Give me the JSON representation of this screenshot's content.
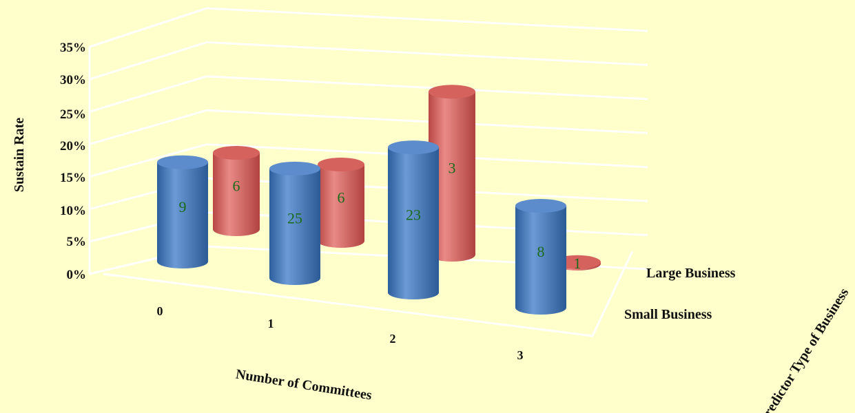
{
  "chart_data": {
    "type": "bar",
    "categories": [
      "0",
      "1",
      "2",
      "3"
    ],
    "series": [
      {
        "name": "Small Business",
        "values": [
          19.5,
          21.5,
          28.5,
          20.0
        ],
        "labels": [
          "9",
          "25",
          "23",
          "8"
        ],
        "color": "#4a7fbf"
      },
      {
        "name": "Large Business",
        "values": [
          15.0,
          15.0,
          32.0,
          0.3
        ],
        "labels": [
          "6",
          "6",
          "3",
          "1"
        ],
        "color": "#d9605c"
      }
    ],
    "yticks": [
      "0%",
      "5%",
      "10%",
      "15%",
      "20%",
      "25%",
      "30%",
      "35%"
    ],
    "ylim": [
      0,
      35
    ],
    "ylabel": "Sustain Rate",
    "xlabel": "Number of Committees",
    "zlabel": "Predictor Type of Business",
    "grid": true,
    "colors": {
      "background": "#ffffcc",
      "gridline": "#ffffff",
      "label_text": "#1a6b1a"
    }
  }
}
